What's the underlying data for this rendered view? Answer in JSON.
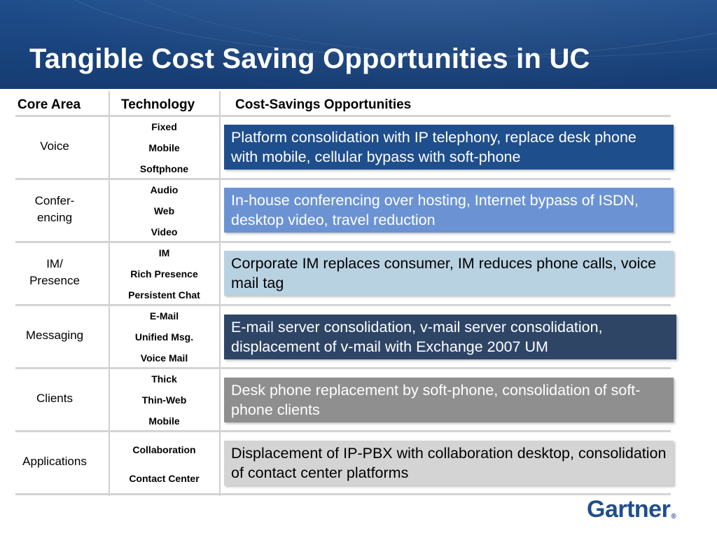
{
  "title": "Tangible Cost Saving Opportunities in UC",
  "headers": {
    "core": "Core Area",
    "tech": "Technology",
    "savings": "Cost-Savings Opportunities"
  },
  "rows": [
    {
      "core": [
        "Voice"
      ],
      "tech": [
        "Fixed",
        "Mobile",
        "Softphone"
      ],
      "text": "Platform consolidation with IP telephony, replace desk phone with mobile, cellular bypass with soft-phone",
      "color": "#1f4e8c",
      "text_color": "#ffffff"
    },
    {
      "core": [
        "Confer-",
        "encing"
      ],
      "tech": [
        "Audio",
        "Web",
        "Video"
      ],
      "text": "In-house conferencing over hosting, Internet bypass of ISDN, desktop video, travel reduction",
      "color": "#6b93d4",
      "text_color": "#ffffff"
    },
    {
      "core": [
        "IM/",
        "Presence"
      ],
      "tech": [
        "IM",
        "Rich Presence",
        "Persistent Chat"
      ],
      "text": "Corporate IM replaces consumer, IM reduces phone calls, voice mail tag",
      "color": "#b8d2e2",
      "text_color": "#000000"
    },
    {
      "core": [
        "Messaging"
      ],
      "tech": [
        "E-Mail",
        "Unified Msg.",
        "Voice Mail"
      ],
      "text": "E-mail server consolidation, v-mail server consolidation, displacement of v-mail with Exchange 2007 UM",
      "color": "#2e4566",
      "text_color": "#ffffff"
    },
    {
      "core": [
        "Clients"
      ],
      "tech": [
        "Thick",
        "Thin-Web",
        "Mobile"
      ],
      "text": "Desk phone replacement by soft-phone, consolidation of soft-phone clients",
      "color": "#8f8f8f",
      "text_color": "#ffffff"
    },
    {
      "core": [
        "Applications"
      ],
      "tech": [
        "Collaboration",
        "Contact Center"
      ],
      "text": "Displacement of IP-PBX with collaboration desktop, consolidation of contact center platforms",
      "color": "#d4d4d4",
      "text_color": "#000000"
    }
  ],
  "logo": {
    "text": "Gartner",
    "mark": "®"
  }
}
